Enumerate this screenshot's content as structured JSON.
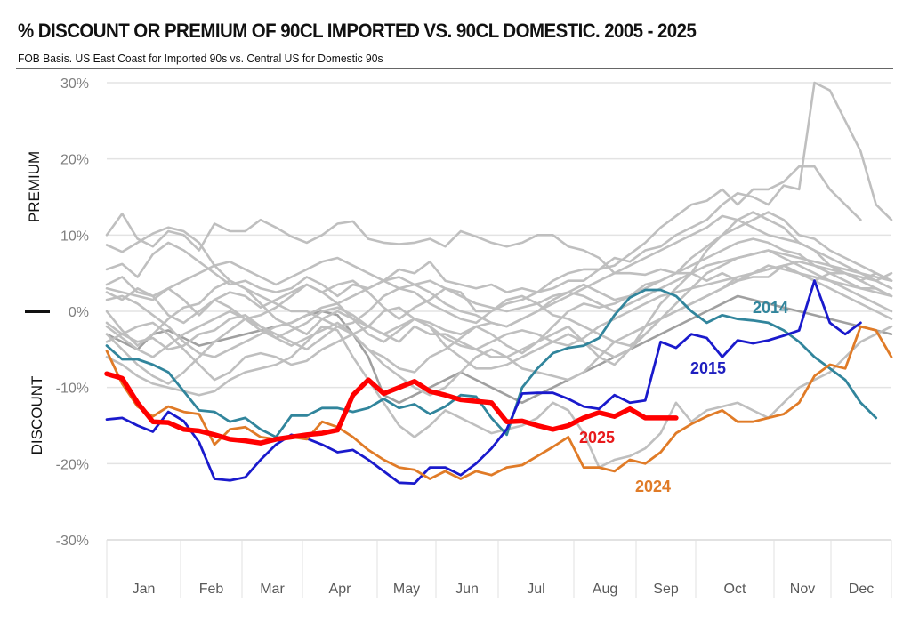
{
  "chart_data": {
    "type": "line",
    "title": "% DISCOUNT OR PREMIUM OF 90CL IMPORTED VS. 90CL DOMESTIC. 2005 - 2025",
    "subtitle": "FOB Basis.  US East Coast for Imported 90s vs. Central US for Domestic 90s",
    "ylabel_top": "PREMIUM",
    "ylabel_bottom": "DISCOUNT",
    "xlabel": "",
    "ylim": [
      -30,
      30
    ],
    "yticks": [
      30,
      20,
      10,
      0,
      -10,
      -20,
      -30
    ],
    "ytick_labels": [
      "30%",
      "20%",
      "10%",
      "0%",
      "-10%",
      "-20%",
      "-30%"
    ],
    "categories": [
      "Jan",
      "Feb",
      "Mar",
      "Apr",
      "May",
      "Jun",
      "Jul",
      "Aug",
      "Sep",
      "Oct",
      "Nov",
      "Dec"
    ],
    "x_unit": "week of year (1-52)",
    "grid": "horizontal",
    "legend": "none (inline annotations)",
    "annotations": [
      {
        "text": "2014",
        "series": "2014",
        "color": "#31859c"
      },
      {
        "text": "2015",
        "series": "2015",
        "color": "#1f1fbf"
      },
      {
        "text": "2025",
        "series": "2025",
        "color": "#e8191b"
      },
      {
        "text": "2024",
        "series": "2024",
        "color": "#e07b27"
      }
    ],
    "series": [
      {
        "name": "2025",
        "color": "#ff0000",
        "highlight": true,
        "values": [
          -8.2,
          -8.8,
          -12,
          -14.5,
          -14.6,
          -15.5,
          -15.7,
          -16.2,
          -16.8,
          -17,
          -17.3,
          -16.8,
          -16.5,
          -16.2,
          -16,
          -15.6,
          -11,
          -9,
          -10.8,
          -10,
          -9.2,
          -10.5,
          -11,
          -11.6,
          -11.8,
          -12,
          -14.5,
          -14.4,
          -15,
          -15.5,
          -15,
          -14,
          -13.3,
          -13.8,
          -12.8,
          -14,
          -14,
          -14
        ]
      },
      {
        "name": "2024",
        "color": "#e07b27",
        "highlight": true,
        "values": [
          -5.2,
          -9.5,
          -12.5,
          -13.8,
          -12.5,
          -13.2,
          -13.5,
          -17.5,
          -15.5,
          -15.2,
          -16.5,
          -16.8,
          -16.5,
          -16.8,
          -14.5,
          -15.2,
          -16.5,
          -18.2,
          -19.5,
          -20.5,
          -20.8,
          -22,
          -21,
          -22,
          -21,
          -21.5,
          -20.5,
          -20.2,
          -19,
          -17.8,
          -16.5,
          -20.5,
          -20.5,
          -21,
          -19.5,
          -20,
          -18.5,
          -16,
          -14.8,
          -13.8,
          -13,
          -14.5,
          -14.5,
          -14,
          -13.5,
          -12,
          -8.5,
          -7,
          -7.5,
          -2,
          -2.5,
          -6
        ]
      },
      {
        "name": "2015",
        "color": "#1a1acc",
        "highlight": true,
        "values": [
          -14.2,
          -14,
          -15,
          -15.8,
          -13.2,
          -14.4,
          -17.2,
          -22,
          -22.2,
          -21.8,
          -19.5,
          -17.5,
          -16.2,
          -16.7,
          -17.5,
          -18.5,
          -18.2,
          -19.5,
          -21,
          -22.5,
          -22.6,
          -20.5,
          -20.5,
          -21.5,
          -20,
          -18,
          -15.5,
          -10.8,
          -10.7,
          -10.7,
          -11.5,
          -12.5,
          -12.8,
          -11,
          -12,
          -11.7,
          -4,
          -4.8,
          -3,
          -3.5,
          -6,
          -3.8,
          -4.2,
          -3.8,
          -3.2,
          -2.5,
          4,
          -1.5,
          -3,
          -1.5
        ]
      },
      {
        "name": "2014",
        "color": "#31859c",
        "highlight": true,
        "values": [
          -4.5,
          -6.3,
          -6.3,
          -7,
          -8,
          -10.5,
          -13,
          -13.2,
          -14.5,
          -14,
          -15.5,
          -16.5,
          -13.7,
          -13.7,
          -12.7,
          -12.7,
          -13.2,
          -12.7,
          -11.5,
          -12.7,
          -12.2,
          -13.5,
          -12.5,
          -11,
          -11.2,
          -14,
          -16.2,
          -10,
          -7.5,
          -5.5,
          -4.8,
          -4.5,
          -3.5,
          -0.5,
          1.8,
          2.8,
          2.8,
          2,
          0,
          -1.5,
          -0.5,
          -1,
          -1.2,
          -1.5,
          -2.5,
          -4,
          -6,
          -7.5,
          -9,
          -12,
          -14
        ]
      },
      {
        "name": "gray-01",
        "color": "#bfbfbf",
        "values": [
          10,
          12.8,
          9.5,
          8.5,
          10.5,
          10,
          8,
          11.5,
          10.5,
          10.5,
          12,
          11,
          9.8,
          9,
          10,
          11.5,
          11.8,
          9.5,
          9,
          8.8,
          9,
          9.5,
          8.5,
          10.5,
          9.8,
          9,
          8.5,
          9,
          10,
          10,
          8.5,
          8,
          7,
          5,
          5,
          4.8,
          5.5,
          5,
          5,
          4,
          5,
          4,
          4.5,
          4.5,
          6,
          5,
          4,
          5,
          5,
          4,
          5,
          4
        ]
      },
      {
        "name": "gray-02",
        "color": "#bfbfbf",
        "values": [
          8.7,
          7.8,
          9,
          10.2,
          11,
          10.5,
          9,
          6,
          4,
          3,
          1,
          -1,
          -2,
          -3,
          -1,
          0,
          -1,
          -2,
          -3,
          -4,
          -2,
          -3,
          -3,
          -4,
          -5,
          -6,
          -6,
          -5,
          -4,
          -3,
          -2,
          -4,
          -6,
          -7,
          -5,
          -2,
          1,
          3,
          5,
          8,
          10,
          12,
          13,
          12,
          11,
          9,
          8,
          6,
          5,
          4,
          3,
          2
        ]
      },
      {
        "name": "gray-03",
        "color": "#bfbfbf",
        "values": [
          5.5,
          6.2,
          4.5,
          7.5,
          9,
          8,
          6.5,
          5,
          3.5,
          4,
          3,
          2.5,
          3,
          4.5,
          3.5,
          2,
          3.5,
          3,
          4,
          5.5,
          5,
          6.5,
          4,
          3.5,
          3,
          3.5,
          2.5,
          3,
          2.5,
          3,
          4,
          4,
          5.5,
          6,
          7.5,
          9,
          11,
          12.5,
          14,
          14.5,
          16,
          14,
          16,
          16,
          17,
          19,
          19,
          16,
          14,
          12
        ]
      },
      {
        "name": "gray-04",
        "color": "#bfbfbf",
        "values": [
          3.5,
          4.5,
          2.5,
          2,
          3,
          1.5,
          -0.5,
          1.5,
          2.5,
          2,
          0.5,
          1.5,
          2.5,
          3.5,
          2.5,
          3.5,
          4,
          2.5,
          0.5,
          -1,
          0.5,
          1.5,
          3,
          2.5,
          0,
          0,
          1,
          1.5,
          2.5,
          4,
          5,
          5.5,
          5.5,
          7,
          6.5,
          8,
          8.5,
          10,
          11,
          12,
          14,
          15.5,
          15,
          14,
          16.5,
          16,
          30,
          29,
          25,
          21,
          14,
          12
        ]
      },
      {
        "name": "gray-05",
        "color": "#bfbfbf",
        "values": [
          -1.5,
          -3,
          -4,
          -3.5,
          -5,
          -4.5,
          -3,
          -2.5,
          -1,
          -0.5,
          -2,
          -3.5,
          -2.5,
          -1.5,
          0,
          0.5,
          -0.5,
          -2,
          -3,
          -2,
          -1,
          -1.5,
          -2.5,
          -3,
          -2,
          -1.5,
          -2,
          -1,
          0,
          1,
          2,
          3,
          4,
          5,
          6,
          7,
          8,
          9,
          10,
          11,
          12.5,
          12,
          11,
          10,
          9.5,
          9,
          8,
          7,
          6,
          5,
          4,
          5
        ]
      },
      {
        "name": "gray-06",
        "color": "#bfbfbf",
        "values": [
          2.5,
          1.5,
          3,
          2,
          -0.5,
          -1.5,
          0,
          1.5,
          0.5,
          -1,
          -2.5,
          -3.5,
          -4.5,
          -3.5,
          -2.5,
          -1.5,
          -3,
          -5,
          -6,
          -7.5,
          -8,
          -6,
          -5,
          -3.5,
          -2,
          -3,
          -4.5,
          -5.5,
          -4,
          -2,
          0,
          1,
          0.5,
          1,
          2,
          3.5,
          4,
          5,
          7,
          8.5,
          10,
          11,
          12,
          13,
          12,
          10,
          9.5,
          8,
          7,
          6,
          5,
          4
        ]
      },
      {
        "name": "gray-07",
        "color": "#bfbfbf",
        "values": [
          0,
          -2.5,
          -4.5,
          -3,
          -1,
          0.5,
          1,
          3,
          4,
          3,
          2,
          1,
          0,
          0,
          -1,
          -2,
          -1.5,
          0,
          2,
          3,
          2.5,
          1,
          0,
          -1,
          -1.5,
          0,
          1.5,
          2,
          1,
          -0.5,
          -1,
          -2,
          -3,
          -4,
          -4.5,
          -3,
          -1,
          0,
          1,
          2,
          3,
          4.5,
          5,
          5.5,
          6,
          5,
          4,
          3,
          2,
          1,
          0,
          -1
        ]
      },
      {
        "name": "gray-08",
        "color": "#bfbfbf",
        "values": [
          -3,
          -5,
          -7,
          -8.5,
          -9.5,
          -8,
          -6,
          -4,
          -2.5,
          -1,
          -0.5,
          0.5,
          2,
          3.5,
          2.5,
          1,
          -1,
          -3,
          -4,
          -2.5,
          -1,
          -2,
          -4.5,
          -6,
          -7.5,
          -7.5,
          -7,
          -6,
          -5,
          -4,
          -3,
          -4,
          -5,
          -6,
          -5,
          -3,
          -1,
          1,
          3,
          5,
          6,
          7,
          7.5,
          8,
          7,
          6,
          5,
          4,
          3,
          2,
          1,
          0
        ]
      },
      {
        "name": "gray-09",
        "color": "#bfbfbf",
        "values": [
          -6,
          -7,
          -8.5,
          -9.5,
          -10,
          -10.5,
          -11,
          -10.5,
          -9,
          -8,
          -7.5,
          -7,
          -6,
          -4,
          -2,
          -2.5,
          -6,
          -9,
          -12,
          -15,
          -16.5,
          -15,
          -13,
          -14,
          -15,
          -16,
          -15.5,
          -15,
          -14,
          -12,
          -13,
          -16,
          -20.5,
          -19.5,
          -19,
          -18,
          -16,
          -12,
          -14.5,
          -13,
          -12.5,
          -12,
          -13,
          -14,
          -12,
          -10,
          -9,
          -8,
          -6,
          -4,
          -3,
          -2
        ]
      },
      {
        "name": "gray-10",
        "color": "#bfbfbf",
        "values": [
          1.5,
          2,
          1,
          -0.5,
          -2,
          -4,
          -5.5,
          -6,
          -5,
          -4,
          -3,
          -2,
          -1.5,
          -0.5,
          0.5,
          1,
          2,
          3,
          4,
          4.5,
          3.5,
          2.5,
          1,
          0,
          -0.5,
          -1.5,
          -2,
          -1,
          0,
          1.5,
          2.5,
          3.5,
          2.5,
          1.5,
          2,
          3,
          4,
          5,
          6,
          7,
          8,
          9,
          9.5,
          9,
          8,
          7.5,
          6,
          5,
          4,
          3,
          3,
          2
        ]
      },
      {
        "name": "gray-11",
        "color": "#bfbfbf",
        "values": [
          3,
          2.5,
          2,
          1.5,
          3,
          4,
          5,
          6,
          6.5,
          5.5,
          4.5,
          3.5,
          4.5,
          5.5,
          6.5,
          7,
          6,
          5,
          4,
          3,
          3.5,
          4,
          3,
          2,
          1,
          0.5,
          0,
          0.5,
          1,
          2,
          2.5,
          2,
          1,
          0,
          1,
          2,
          3,
          4,
          5,
          6,
          6.5,
          7,
          7.5,
          8,
          7.5,
          7,
          6.5,
          6,
          5.5,
          5,
          4.5,
          4
        ]
      },
      {
        "name": "gray-12",
        "color": "#bfbfbf",
        "values": [
          -4,
          -3,
          -2,
          -1.5,
          -3,
          -5,
          -7,
          -9,
          -8,
          -6,
          -5.5,
          -6,
          -7,
          -6.5,
          -5,
          -4,
          -3,
          -2,
          0,
          0.5,
          -1,
          -2,
          -3.5,
          -4.5,
          -5,
          -4,
          -3,
          -2.5,
          -3,
          -4,
          -4.5,
          -3.5,
          -2,
          -1,
          0,
          1,
          2,
          2.5,
          3,
          3.5,
          4,
          4.5,
          5,
          5.5,
          6,
          6.5,
          6,
          5.5,
          5,
          4.5,
          4,
          3
        ]
      },
      {
        "name": "gray-13",
        "color": "#bfbfbf",
        "values": [
          -2,
          -3.5,
          -5,
          -6,
          -4.5,
          -3,
          -2,
          -1,
          0,
          -1,
          -2,
          -3,
          -4,
          -5,
          -3.5,
          -2,
          -3,
          -5,
          -7,
          -8.5,
          -10,
          -11,
          -10,
          -8,
          -6,
          -5,
          -6,
          -7.5,
          -8,
          -8.5,
          -9,
          -8,
          -6,
          -4,
          -3,
          -2,
          -1,
          0,
          1,
          2,
          3,
          4,
          5,
          6,
          5.5,
          5,
          4.5,
          4,
          3.5,
          3,
          2.5,
          2
        ]
      },
      {
        "name": "gray-14-dark",
        "color": "#a0a0a0",
        "values": [
          -3,
          -4,
          -5,
          -3,
          -2.5,
          -3.5,
          -4.5,
          -4,
          -3.5,
          -3,
          -2.5,
          -2,
          -1.5,
          -0.5,
          0,
          -0.5,
          -3,
          -6,
          -11,
          -12,
          -11,
          -10,
          -9,
          -8,
          -9,
          -10,
          -11,
          -12,
          -11,
          -10,
          -9,
          -8,
          -7,
          -6,
          -5,
          -4,
          -3,
          -2,
          -1,
          0,
          1,
          2,
          1.5,
          1,
          0.5,
          0,
          -0.5,
          -1,
          -1.5,
          -2,
          -2.5,
          -3
        ]
      }
    ]
  }
}
